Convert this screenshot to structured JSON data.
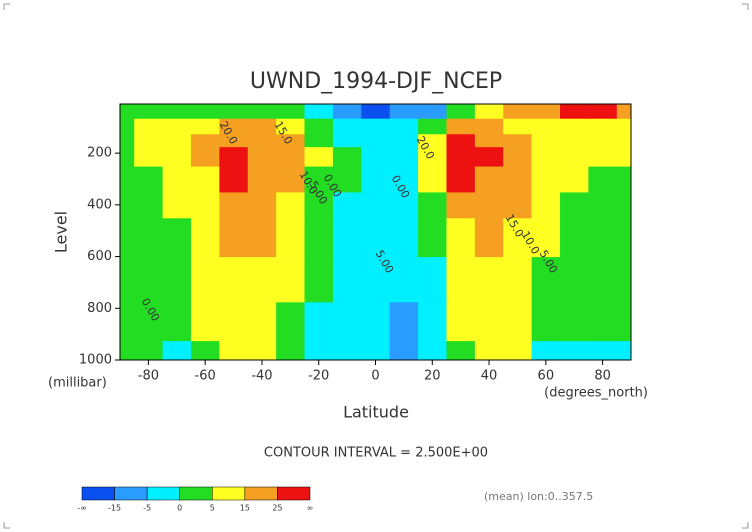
{
  "chart_data": {
    "type": "contour",
    "title": "UWND_1994-DJF_NCEP",
    "y_label": "Level",
    "y_unit": "(millibar)",
    "x_label": "Latitude",
    "x_unit": "(degrees_north)",
    "subtitle": "CONTOUR INTERVAL = 2.500E+00",
    "note": "(mean) lon:0..357.5",
    "xlim": [
      -90,
      90
    ],
    "xticks": [
      -80,
      -60,
      -40,
      -20,
      0,
      20,
      40,
      60,
      80
    ],
    "ylim": [
      1000,
      10
    ],
    "yticks": [
      200,
      400,
      600,
      800,
      1000
    ],
    "x": [
      -90,
      -80,
      -70,
      -60,
      -50,
      -40,
      -30,
      -20,
      -10,
      0,
      10,
      20,
      30,
      40,
      50,
      60,
      70,
      80,
      90
    ],
    "levels": [
      1000,
      850,
      700,
      500,
      400,
      300,
      200,
      150,
      100,
      30
    ],
    "values": [
      [
        1,
        2,
        -1,
        4,
        8,
        6,
        2,
        -2,
        -4,
        -4,
        -7,
        -5,
        3,
        7,
        6,
        -1,
        -2,
        -2,
        -1
      ],
      [
        1,
        2,
        0,
        5,
        10,
        9,
        4,
        -1,
        -4,
        -4,
        -6,
        -3,
        6,
        10,
        9,
        2,
        0,
        0,
        0
      ],
      [
        1,
        2,
        1,
        6,
        12,
        11,
        6,
        0,
        -3,
        -3,
        -5,
        -1,
        9,
        13,
        11,
        4,
        2,
        1,
        1
      ],
      [
        0,
        2,
        3,
        8,
        16,
        15,
        9,
        2,
        -2,
        -2,
        -3,
        2,
        14,
        17,
        13,
        6,
        3,
        2,
        2
      ],
      [
        0,
        3,
        5,
        11,
        20,
        18,
        12,
        3,
        -1,
        -2,
        -2,
        4,
        19,
        20,
        15,
        7,
        4,
        3,
        2
      ],
      [
        0,
        4,
        7,
        14,
        26,
        22,
        15,
        4,
        0,
        -2,
        -1,
        7,
        27,
        24,
        17,
        9,
        5,
        4,
        3
      ],
      [
        1,
        5,
        9,
        16,
        28,
        24,
        17,
        5,
        0,
        -2,
        -1,
        9,
        32,
        26,
        18,
        10,
        7,
        6,
        5
      ],
      [
        2,
        5,
        9,
        15,
        24,
        21,
        15,
        4,
        -1,
        -3,
        -2,
        7,
        28,
        22,
        16,
        10,
        9,
        8,
        7
      ],
      [
        3,
        5,
        8,
        12,
        17,
        16,
        11,
        2,
        -3,
        -4,
        -4,
        4,
        20,
        16,
        13,
        12,
        13,
        13,
        12
      ],
      [
        2,
        3,
        4,
        4,
        3,
        2,
        0,
        -5,
        -12,
        -16,
        -14,
        -8,
        2,
        8,
        15,
        22,
        28,
        27,
        24
      ]
    ],
    "colorbar": {
      "ticks": [
        "-∞",
        -15,
        -5,
        0,
        5,
        15,
        25,
        "∞"
      ],
      "colors": [
        "#0a50f0",
        "#2a9cff",
        "#00f0ff",
        "#22dd22",
        "#ffff22",
        "#f5a020",
        "#ee1111"
      ]
    },
    "contour_labels": [
      "20.0",
      "15.0",
      "10.0",
      "5.00",
      "0.00",
      "20.0",
      "15.0",
      "10.0",
      "5.00",
      "0.00",
      "5.00",
      "0.00"
    ]
  }
}
